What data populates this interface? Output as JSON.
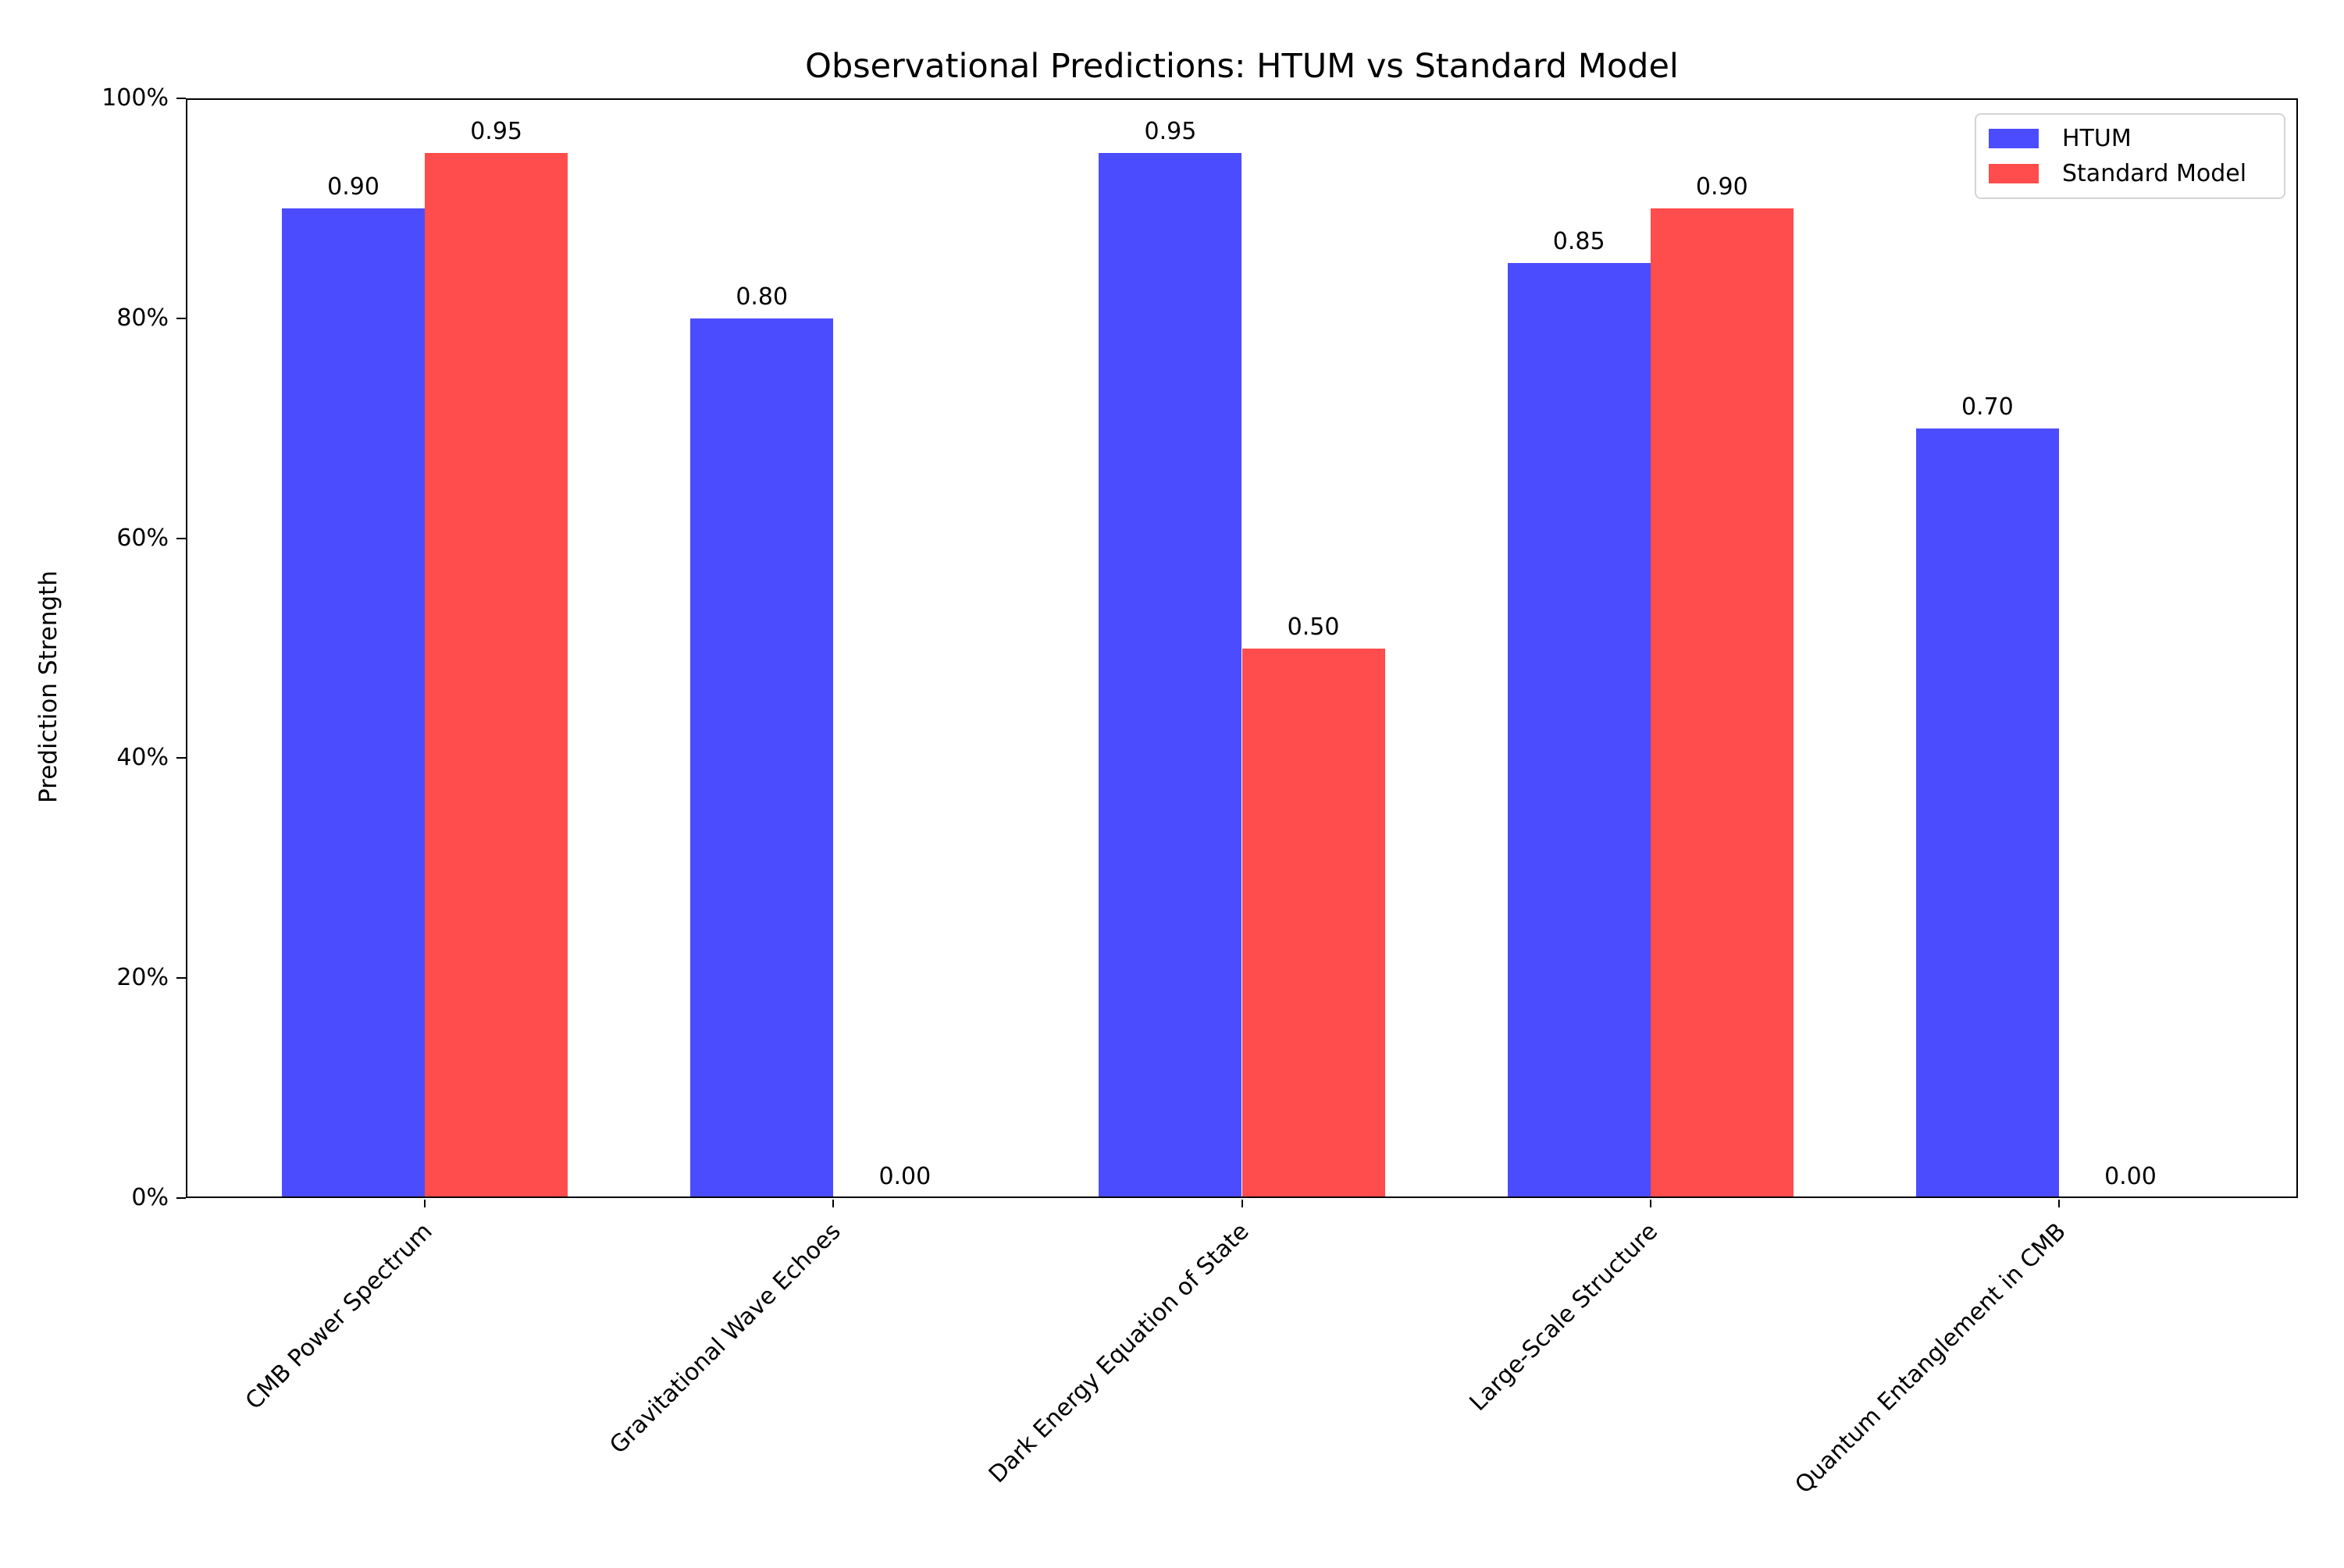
{
  "chart_data": {
    "type": "bar",
    "title": "Observational Predictions: HTUM vs Standard Model",
    "xlabel": "",
    "ylabel": "Prediction Strength",
    "categories": [
      "CMB Power Spectrum",
      "Gravitational Wave Echoes",
      "Dark Energy Equation of State",
      "Large-Scale Structure",
      "Quantum Entanglement in CMB"
    ],
    "series": [
      {
        "name": "HTUM",
        "color": "#4C4CFF",
        "values": [
          0.9,
          0.8,
          0.95,
          0.85,
          0.7
        ],
        "labels": [
          "0.90",
          "0.80",
          "0.95",
          "0.85",
          "0.70"
        ]
      },
      {
        "name": "Standard Model",
        "color": "#FF4C4C",
        "values": [
          0.95,
          0.0,
          0.5,
          0.9,
          0.0
        ],
        "labels": [
          "0.95",
          "0.00",
          "0.50",
          "0.90",
          "0.00"
        ]
      }
    ],
    "ylim": [
      0,
      1
    ],
    "yticks": {
      "values": [
        0,
        20,
        40,
        60,
        80,
        100
      ],
      "labels": [
        "0%",
        "20%",
        "40%",
        "60%",
        "80%",
        "100%"
      ]
    },
    "legend": {
      "position": "upper right",
      "entries": [
        "HTUM",
        "Standard Model"
      ]
    },
    "grid": false,
    "bar_value_labels": true
  }
}
